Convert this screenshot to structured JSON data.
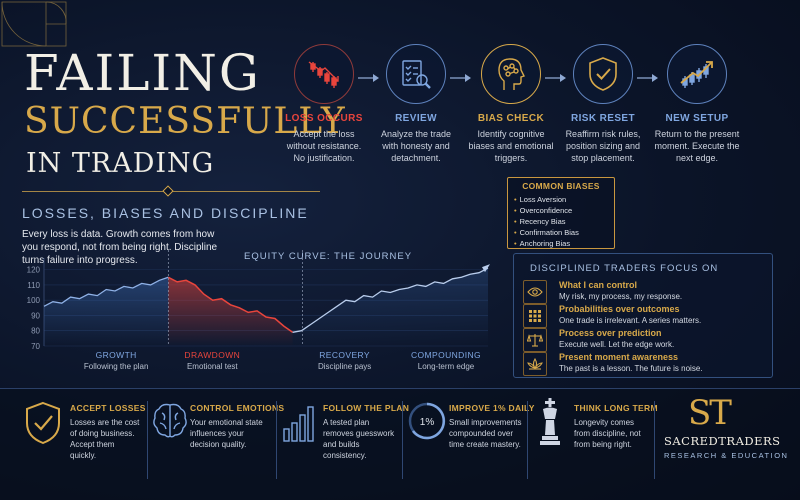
{
  "title": {
    "line1": "FAILING",
    "line2": "SUCCESSFULLY",
    "line3": "IN TRADING",
    "subtitle": "LOSSES, BIASES AND DISCIPLINE",
    "intro": "Every loss is data. Growth comes from how you respond, not from being right. Discipline turns failure into progress."
  },
  "steps": [
    {
      "title": "LOSS OCCURS",
      "desc": "Accept the loss without resistance. No justification.",
      "icon": "falling-chart-icon",
      "color": "#e8453c"
    },
    {
      "title": "REVIEW",
      "desc": "Analyze the trade with honesty and detachment.",
      "icon": "checklist-magnifier-icon",
      "color": "#7fa6e0"
    },
    {
      "title": "BIAS CHECK",
      "desc": "Identify cognitive biases and emotional triggers.",
      "icon": "brain-head-icon",
      "color": "#d8a94a"
    },
    {
      "title": "RISK RESET",
      "desc": "Reaffirm risk rules, position sizing and stop placement.",
      "icon": "shield-check-icon",
      "color": "#7fa6e0"
    },
    {
      "title": "NEW SETUP",
      "desc": "Return to the present moment. Execute the next edge.",
      "icon": "rising-chart-icon",
      "color": "#7fa6e0"
    }
  ],
  "biases": {
    "title": "COMMON BIASES",
    "items": [
      "Loss Aversion",
      "Overconfidence",
      "Recency Bias",
      "Confirmation Bias",
      "Anchoring Bias"
    ]
  },
  "focus": {
    "title": "DISCIPLINED TRADERS FOCUS ON",
    "items": [
      {
        "head": "What I can control",
        "sub": "My risk, my process, my response.",
        "icon": "eye-icon"
      },
      {
        "head": "Probabilities over outcomes",
        "sub": "One trade is irrelevant. A series matters.",
        "icon": "grid-icon"
      },
      {
        "head": "Process over prediction",
        "sub": "Execute well. Let the edge work.",
        "icon": "scale-icon"
      },
      {
        "head": "Present moment awareness",
        "sub": "The past is a lesson. The future is noise.",
        "icon": "lotus-icon"
      }
    ]
  },
  "chart_data": {
    "type": "line",
    "title": "EQUITY CURVE: THE JOURNEY",
    "y_ticks": [
      120,
      110,
      100,
      90,
      80,
      70
    ],
    "ylim": [
      70,
      125
    ],
    "x": [
      0,
      4,
      8,
      12,
      16,
      20,
      24,
      28,
      32,
      36,
      40,
      44,
      48,
      52,
      56,
      60,
      64,
      68,
      72,
      76,
      80,
      84,
      88,
      92,
      96,
      100,
      104,
      108,
      112,
      116,
      120,
      124,
      128,
      132,
      136,
      140,
      144,
      148,
      152,
      156,
      160,
      164,
      168,
      172,
      176,
      180,
      184,
      188,
      192,
      196,
      200
    ],
    "values": [
      96,
      99,
      98,
      102,
      101,
      104,
      103,
      107,
      106,
      109,
      108,
      111,
      110,
      113,
      115,
      112,
      113,
      110,
      104,
      100,
      101,
      97,
      95,
      92,
      93,
      89,
      88,
      83,
      79,
      80,
      84,
      88,
      92,
      96,
      100,
      99,
      103,
      102,
      106,
      105,
      107,
      108,
      110,
      109,
      112,
      111,
      114,
      115,
      117,
      118,
      121
    ],
    "segments": [
      {
        "label": "GROWTH",
        "sub": "Following the plan",
        "color": "#7fa6e0"
      },
      {
        "label": "DRAWDOWN",
        "sub": "Emotional test",
        "color": "#e8453c"
      },
      {
        "label": "RECOVERY",
        "sub": "Discipline pays",
        "color": "#7fa6e0"
      },
      {
        "label": "COMPOUNDING",
        "sub": "Long-term edge",
        "color": "#7fa6e0"
      }
    ]
  },
  "bottom": [
    {
      "title": "ACCEPT LOSSES",
      "desc": "Losses are the cost of doing business. Accept them quickly.",
      "icon": "shield-check-icon"
    },
    {
      "title": "CONTROL EMOTIONS",
      "desc": "Your emotional state influences your decision quality.",
      "icon": "brain-icon"
    },
    {
      "title": "FOLLOW THE PLAN",
      "desc": "A tested plan removes guesswork and builds consistency.",
      "icon": "bar-chart-icon"
    },
    {
      "title": "IMPROVE 1% DAILY",
      "desc": "Small improvements compounded over time create mastery.",
      "icon": "progress-ring-icon",
      "badge": "1%"
    },
    {
      "title": "THINK LONG TERM",
      "desc": "Longevity comes from discipline, not from being right.",
      "icon": "chess-king-icon"
    }
  ],
  "brand": {
    "logo": "ST",
    "name": "SACREDTRADERS",
    "tagline": "RESEARCH & EDUCATION"
  },
  "colors": {
    "gold": "#d8a94a",
    "red": "#e8453c",
    "blue": "#7fa6e0",
    "background": "#0b1428"
  }
}
